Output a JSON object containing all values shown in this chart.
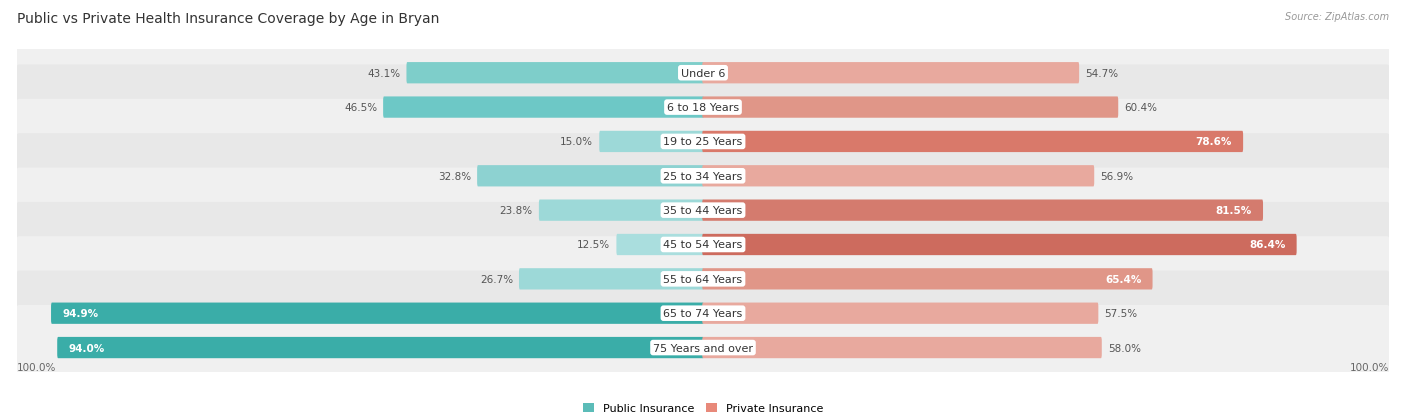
{
  "title": "Public vs Private Health Insurance Coverage by Age in Bryan",
  "source": "Source: ZipAtlas.com",
  "categories": [
    "Under 6",
    "6 to 18 Years",
    "19 to 25 Years",
    "25 to 34 Years",
    "35 to 44 Years",
    "45 to 54 Years",
    "55 to 64 Years",
    "65 to 74 Years",
    "75 Years and over"
  ],
  "public_values": [
    43.1,
    46.5,
    15.0,
    32.8,
    23.8,
    12.5,
    26.7,
    94.9,
    94.0
  ],
  "private_values": [
    54.7,
    60.4,
    78.6,
    56.9,
    81.5,
    86.4,
    65.4,
    57.5,
    58.0
  ],
  "public_colors": [
    "#7ececa",
    "#6dc8c6",
    "#9dd9d8",
    "#8dd2d1",
    "#9dd9d8",
    "#aadede",
    "#9dd9d8",
    "#3aada8",
    "#3aada8"
  ],
  "private_colors": [
    "#e8a99e",
    "#e09688",
    "#d9796a",
    "#e8a99e",
    "#d47b6e",
    "#cd6b5e",
    "#e09688",
    "#e8a99e",
    "#e8a99e"
  ],
  "row_bg_colors": [
    "#f0f0f0",
    "#e8e8e8",
    "#f0f0f0",
    "#e8e8e8",
    "#f0f0f0",
    "#e8e8e8",
    "#f0f0f0",
    "#e8e8e8",
    "#f0f0f0"
  ],
  "title_fontsize": 10,
  "label_fontsize": 8,
  "value_fontsize": 7.5,
  "axis_fontsize": 7.5,
  "max_value": 100.0,
  "legend_public": "Public Insurance",
  "legend_private": "Private Insurance",
  "legend_pub_color": "#5bbcb8",
  "legend_priv_color": "#e8897a"
}
